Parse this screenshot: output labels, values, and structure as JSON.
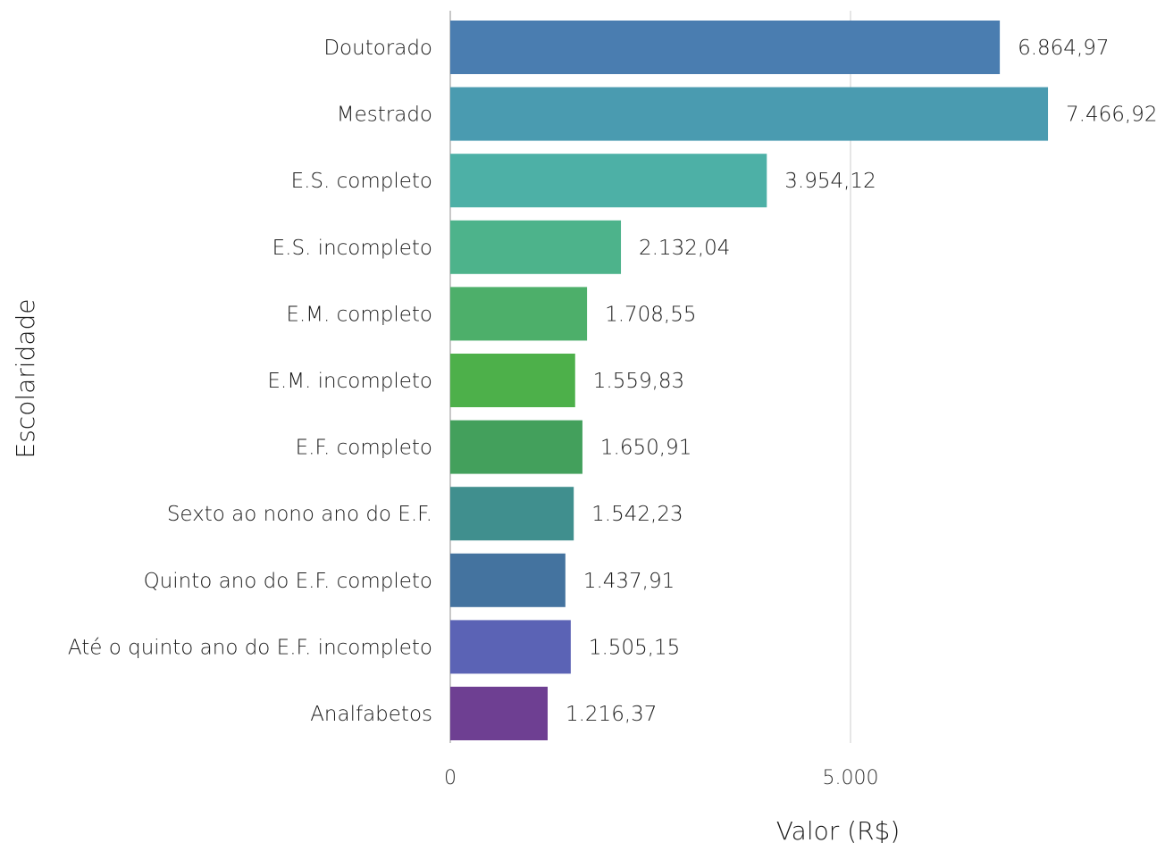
{
  "chart_data": {
    "type": "bar",
    "orientation": "horizontal",
    "xlabel": "Valor (R$)",
    "ylabel": "Escolaridade",
    "xlim": [
      0,
      8000
    ],
    "x_ticks": [
      {
        "value": 0,
        "label": "0"
      },
      {
        "value": 5000,
        "label": "5.000"
      }
    ],
    "grid": "vertical",
    "categories": [
      "Doutorado",
      "Mestrado",
      "E.S. completo",
      "E.S. incompleto",
      "E.M. completo",
      "E.M. incompleto",
      "E.F. completo",
      "Sexto ao nono ano do E.F.",
      "Quinto ano do E.F. completo",
      "Até o quinto ano do E.F. incompleto",
      "Analfabetos"
    ],
    "values": [
      6864.97,
      7466.92,
      3954.12,
      2132.04,
      1708.55,
      1559.83,
      1650.91,
      1542.23,
      1437.91,
      1505.15,
      1216.37
    ],
    "value_labels": [
      "6.864,97",
      "7.466,92",
      "3.954,12",
      "2.132,04",
      "1.708,55",
      "1.559,83",
      "1.650,91",
      "1.542,23",
      "1.437,91",
      "1.505,15",
      "1.216,37"
    ],
    "colors": [
      "#4a7db0",
      "#4a9bb0",
      "#4db0a6",
      "#4db38b",
      "#4daf6a",
      "#4db04a",
      "#43a05c",
      "#408f8e",
      "#44739f",
      "#5b63b5",
      "#6e3f92"
    ]
  }
}
